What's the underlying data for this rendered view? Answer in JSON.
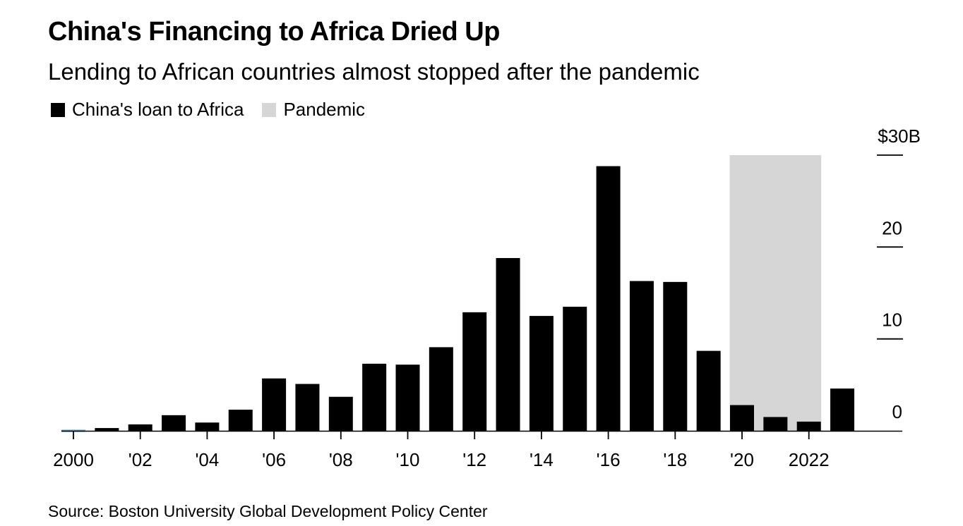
{
  "header": {
    "title": "China's Financing to Africa Dried Up",
    "subtitle": "Lending to African countries almost stopped after the pandemic"
  },
  "legend": [
    {
      "label": "China's loan to Africa",
      "color": "#000000"
    },
    {
      "label": "Pandemic",
      "color": "#d6d6d6"
    }
  ],
  "footer": {
    "source": "Source: Boston University Global Development Policy Center"
  },
  "chart_data": {
    "type": "bar",
    "title": "China's Financing to Africa Dried Up",
    "subtitle": "Lending to African countries almost stopped after the pandemic",
    "xlabel": "",
    "ylabel": "",
    "unit": "$B",
    "categories": [
      "2000",
      "2001",
      "2002",
      "2003",
      "2004",
      "2005",
      "2006",
      "2007",
      "2008",
      "2009",
      "2010",
      "2011",
      "2012",
      "2013",
      "2014",
      "2015",
      "2016",
      "2017",
      "2018",
      "2019",
      "2020",
      "2021",
      "2022",
      "2023"
    ],
    "series": [
      {
        "name": "China's loan to Africa",
        "color": "#000000",
        "values": [
          0.1,
          0.3,
          0.7,
          1.7,
          0.9,
          2.3,
          5.7,
          5.1,
          3.7,
          7.3,
          7.2,
          9.1,
          12.9,
          18.8,
          12.5,
          13.5,
          28.8,
          16.3,
          16.2,
          8.7,
          2.8,
          1.5,
          1.0,
          4.6
        ]
      }
    ],
    "highlight_color_first_bar": "#4a9fe0",
    "shaded_region": {
      "name": "Pandemic",
      "start": "2020",
      "end": "2022",
      "color": "#d6d6d6"
    },
    "x_tick_labels": [
      {
        "at": "2000",
        "label": "2000"
      },
      {
        "at": "2002",
        "label": "'02"
      },
      {
        "at": "2004",
        "label": "'04"
      },
      {
        "at": "2006",
        "label": "'06"
      },
      {
        "at": "2008",
        "label": "'08"
      },
      {
        "at": "2010",
        "label": "'10"
      },
      {
        "at": "2012",
        "label": "'12"
      },
      {
        "at": "2014",
        "label": "'14"
      },
      {
        "at": "2016",
        "label": "'16"
      },
      {
        "at": "2018",
        "label": "'18"
      },
      {
        "at": "2020",
        "label": "'20"
      },
      {
        "at": "2022",
        "label": "2022"
      }
    ],
    "y_ticks": [
      {
        "value": 0,
        "label": "0"
      },
      {
        "value": 10,
        "label": "10"
      },
      {
        "value": 20,
        "label": "20"
      },
      {
        "value": 30,
        "label": "$30B"
      }
    ],
    "ylim": [
      0,
      30
    ],
    "y_axis_side": "right",
    "grid": false,
    "legend_position": "top-left"
  }
}
